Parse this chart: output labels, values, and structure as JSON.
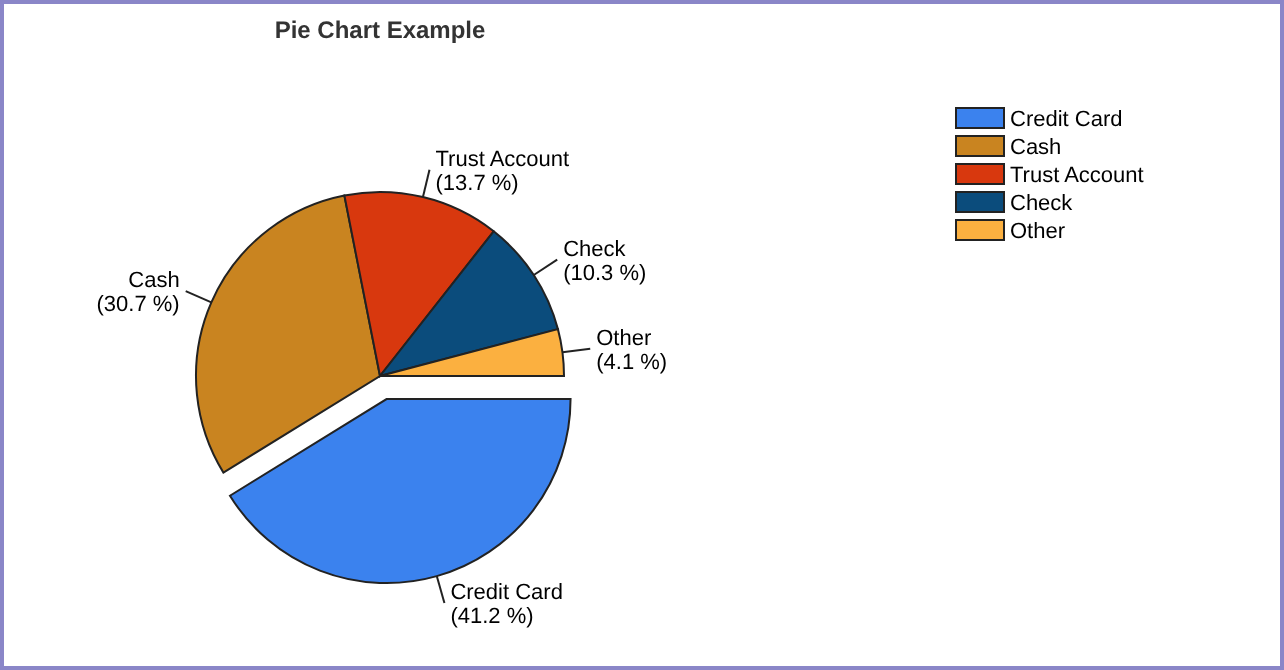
{
  "chart_data": {
    "type": "pie",
    "title": "Pie Chart Example",
    "categories": [
      "Credit Card",
      "Cash",
      "Trust Account",
      "Check",
      "Other"
    ],
    "values": [
      41.2,
      30.7,
      13.7,
      10.3,
      4.1
    ],
    "colors": [
      "#3b82ee",
      "#c98420",
      "#d8380e",
      "#0b4c7c",
      "#fbb040"
    ],
    "value_labels": [
      "(41.2 %)",
      "(30.7 %)",
      "(13.7 %)",
      "(10.3 %)",
      "(4.1 %)"
    ],
    "data_labels": true,
    "legend": "top right"
  }
}
